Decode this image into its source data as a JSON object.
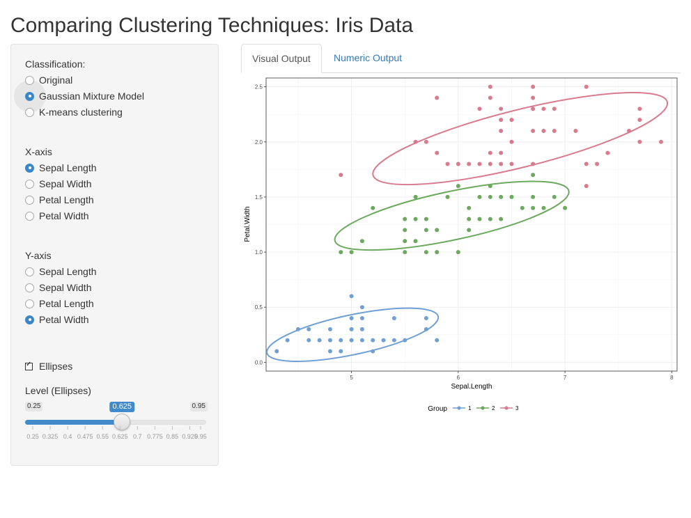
{
  "app": {
    "title": "Comparing Clustering Techniques: Iris Data"
  },
  "sidebar": {
    "classification": {
      "label": "Classification:",
      "options": [
        "Original",
        "Gaussian Mixture Model",
        "K-means clustering"
      ],
      "selected": "Gaussian Mixture Model"
    },
    "x_axis": {
      "label": "X-axis",
      "options": [
        "Sepal Length",
        "Sepal Width",
        "Petal Length",
        "Petal Width"
      ],
      "selected": "Sepal Length"
    },
    "y_axis": {
      "label": "Y-axis",
      "options": [
        "Sepal Length",
        "Sepal Width",
        "Petal Length",
        "Petal Width"
      ],
      "selected": "Petal Width"
    },
    "ellipses": {
      "label": "Ellipses",
      "checked": true
    },
    "level": {
      "label": "Level (Ellipses)",
      "min": 0.25,
      "max": 0.95,
      "value": 0.625,
      "min_label": "0.25",
      "max_label": "0.95",
      "value_label": "0.625",
      "tick_labels": [
        "0.25",
        "0.325",
        "0.4",
        "0.475",
        "0.55",
        "0.625",
        "0.7",
        "0.775",
        "0.85",
        "0.925",
        "0.95"
      ]
    }
  },
  "tabs": [
    {
      "label": "Visual Output",
      "active": true
    },
    {
      "label": "Numeric Output",
      "active": false
    }
  ],
  "colors": {
    "accent": "#428bca",
    "group1": "#6f9fd5",
    "group2": "#6ca85e",
    "group3": "#d97a8e"
  },
  "chart_data": {
    "type": "scatter",
    "xlabel": "Sepal.Length",
    "ylabel": "Petal.Width",
    "xlim": [
      4.2,
      8.05
    ],
    "ylim": [
      -0.08,
      2.58
    ],
    "xticks": [
      5,
      6,
      7,
      8
    ],
    "yticks": [
      0.0,
      0.5,
      1.0,
      1.5,
      2.0,
      2.5
    ],
    "ytick_labels": [
      "0.0",
      "0.5",
      "1.0",
      "1.5",
      "2.0",
      "2.5"
    ],
    "grid": true,
    "legend": {
      "title": "Group",
      "position": "bottom"
    },
    "series": [
      {
        "name": "1",
        "color": "#6f9fd5",
        "points": [
          [
            4.3,
            0.1
          ],
          [
            4.4,
            0.2
          ],
          [
            4.5,
            0.3
          ],
          [
            4.6,
            0.2
          ],
          [
            4.6,
            0.3
          ],
          [
            4.7,
            0.2
          ],
          [
            4.8,
            0.1
          ],
          [
            4.8,
            0.2
          ],
          [
            4.8,
            0.3
          ],
          [
            4.9,
            0.1
          ],
          [
            4.9,
            0.2
          ],
          [
            5.0,
            0.2
          ],
          [
            5.0,
            0.3
          ],
          [
            5.0,
            0.4
          ],
          [
            5.0,
            0.6
          ],
          [
            5.1,
            0.2
          ],
          [
            5.1,
            0.3
          ],
          [
            5.1,
            0.4
          ],
          [
            5.1,
            0.5
          ],
          [
            5.2,
            0.1
          ],
          [
            5.2,
            0.2
          ],
          [
            5.3,
            0.2
          ],
          [
            5.4,
            0.2
          ],
          [
            5.4,
            0.4
          ],
          [
            5.5,
            0.2
          ],
          [
            5.7,
            0.3
          ],
          [
            5.7,
            0.4
          ],
          [
            5.8,
            0.2
          ]
        ],
        "ellipse": {
          "center": [
            5.01,
            0.25
          ],
          "rx": 0.82,
          "ry": 0.18,
          "angle_deg": 12
        }
      },
      {
        "name": "2",
        "color": "#6ca85e",
        "points": [
          [
            4.9,
            1.0
          ],
          [
            5.0,
            1.0
          ],
          [
            5.1,
            1.1
          ],
          [
            5.2,
            1.4
          ],
          [
            5.5,
            1.0
          ],
          [
            5.5,
            1.1
          ],
          [
            5.5,
            1.2
          ],
          [
            5.5,
            1.3
          ],
          [
            5.6,
            1.1
          ],
          [
            5.6,
            1.3
          ],
          [
            5.6,
            1.5
          ],
          [
            5.7,
            1.0
          ],
          [
            5.7,
            1.2
          ],
          [
            5.7,
            1.3
          ],
          [
            5.8,
            1.0
          ],
          [
            5.8,
            1.2
          ],
          [
            5.9,
            1.5
          ],
          [
            6.0,
            1.0
          ],
          [
            6.0,
            1.6
          ],
          [
            6.1,
            1.2
          ],
          [
            6.1,
            1.3
          ],
          [
            6.1,
            1.4
          ],
          [
            6.2,
            1.3
          ],
          [
            6.2,
            1.5
          ],
          [
            6.3,
            1.3
          ],
          [
            6.3,
            1.5
          ],
          [
            6.3,
            1.6
          ],
          [
            6.4,
            1.3
          ],
          [
            6.4,
            1.5
          ],
          [
            6.5,
            1.5
          ],
          [
            6.6,
            1.4
          ],
          [
            6.7,
            1.4
          ],
          [
            6.7,
            1.7
          ],
          [
            6.7,
            1.5
          ],
          [
            6.8,
            1.4
          ],
          [
            6.9,
            1.5
          ],
          [
            7.0,
            1.4
          ]
        ],
        "ellipse": {
          "center": [
            5.94,
            1.33
          ],
          "rx": 1.12,
          "ry": 0.22,
          "angle_deg": 12
        }
      },
      {
        "name": "3",
        "color": "#d97a8e",
        "points": [
          [
            4.9,
            1.7
          ],
          [
            5.6,
            2.0
          ],
          [
            5.7,
            2.0
          ],
          [
            5.8,
            1.9
          ],
          [
            5.8,
            2.4
          ],
          [
            5.9,
            1.8
          ],
          [
            6.0,
            1.8
          ],
          [
            6.1,
            1.8
          ],
          [
            6.2,
            1.8
          ],
          [
            6.2,
            2.3
          ],
          [
            6.3,
            1.8
          ],
          [
            6.3,
            1.9
          ],
          [
            6.3,
            2.4
          ],
          [
            6.3,
            2.5
          ],
          [
            6.4,
            1.8
          ],
          [
            6.4,
            1.9
          ],
          [
            6.4,
            2.1
          ],
          [
            6.4,
            2.2
          ],
          [
            6.4,
            2.3
          ],
          [
            6.5,
            1.8
          ],
          [
            6.5,
            2.0
          ],
          [
            6.5,
            2.2
          ],
          [
            6.7,
            1.8
          ],
          [
            6.7,
            2.1
          ],
          [
            6.7,
            2.3
          ],
          [
            6.7,
            2.4
          ],
          [
            6.7,
            2.5
          ],
          [
            6.8,
            2.1
          ],
          [
            6.8,
            2.3
          ],
          [
            6.9,
            2.1
          ],
          [
            6.9,
            2.3
          ],
          [
            7.1,
            2.1
          ],
          [
            7.2,
            1.6
          ],
          [
            7.2,
            1.8
          ],
          [
            7.2,
            2.5
          ],
          [
            7.3,
            1.8
          ],
          [
            7.4,
            1.9
          ],
          [
            7.6,
            2.1
          ],
          [
            7.7,
            2.0
          ],
          [
            7.7,
            2.2
          ],
          [
            7.7,
            2.3
          ],
          [
            7.9,
            2.0
          ]
        ],
        "ellipse": {
          "center": [
            6.58,
            2.03
          ],
          "rx": 1.42,
          "ry": 0.26,
          "angle_deg": 14
        }
      }
    ]
  }
}
